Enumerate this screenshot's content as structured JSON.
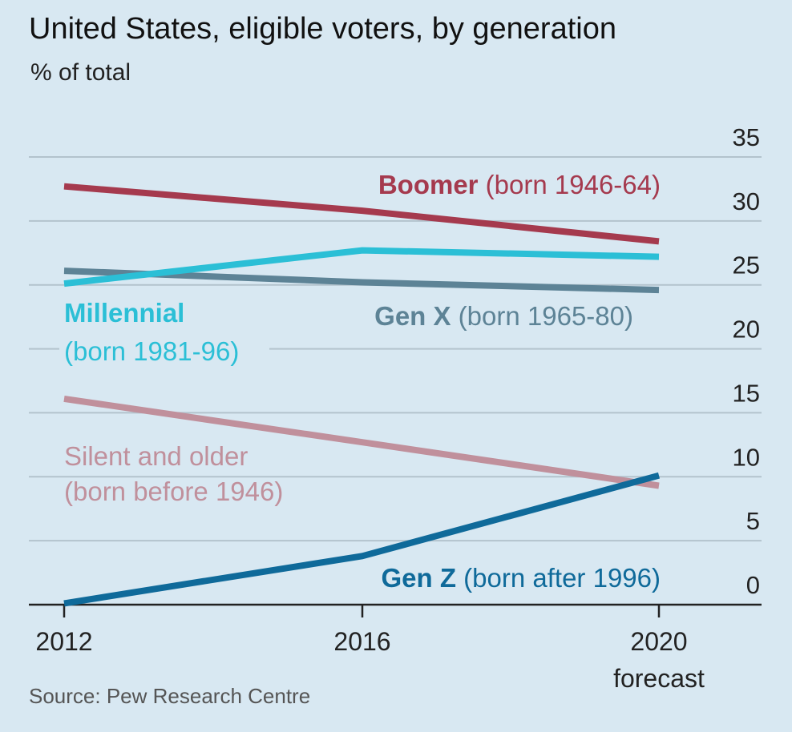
{
  "chart_data": {
    "type": "line",
    "title": "United States, eligible voters, by generation",
    "subtitle": "% of total",
    "source": "Source: Pew Research Centre",
    "x": [
      "2012",
      "2016",
      "2020"
    ],
    "x_sublabels": [
      "",
      "",
      "forecast"
    ],
    "y_ticks": [
      "0",
      "5",
      "10",
      "15",
      "20",
      "25",
      "30",
      "35"
    ],
    "ylim": [
      0,
      35
    ],
    "grid": true,
    "series": [
      {
        "name": "Boomer",
        "note": "(born 1946-64)",
        "color": "#a53a4e",
        "values": [
          32.7,
          30.8,
          28.4
        ]
      },
      {
        "name": "Millennial",
        "note": "(born 1981-96)",
        "color": "#2bbfd6",
        "values": [
          25.1,
          27.7,
          27.2
        ]
      },
      {
        "name": "Gen X",
        "note": "(born 1965-80)",
        "color": "#5d8396",
        "values": [
          26.1,
          25.2,
          24.6
        ]
      },
      {
        "name": "Silent and older",
        "note": "(born before 1946)",
        "color": "#c0909c",
        "values": [
          16.1,
          12.7,
          9.3
        ]
      },
      {
        "name": "Gen Z",
        "note": "(born after 1996)",
        "color": "#0f6a9a",
        "values": [
          0.1,
          3.8,
          10.1
        ]
      }
    ]
  }
}
